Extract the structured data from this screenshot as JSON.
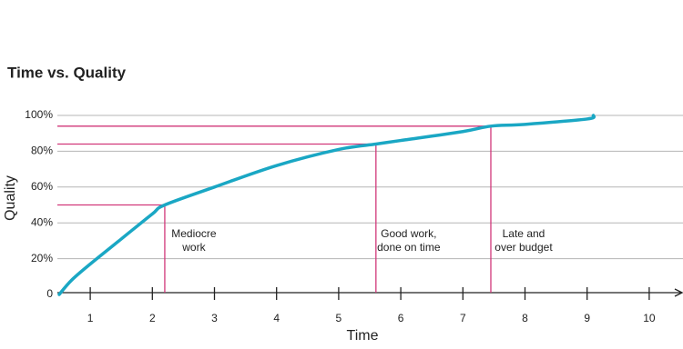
{
  "chart_data": {
    "type": "line",
    "title": "Time vs. Quality",
    "x_label": "Time",
    "y_label": "Quality",
    "xlim": [
      0.5,
      10.5
    ],
    "xticks": [
      1,
      2,
      3,
      4,
      5,
      6,
      7,
      8,
      9,
      10
    ],
    "ylim": [
      0,
      100
    ],
    "yticks": [
      0,
      {
        "value": 20,
        "label": "20%"
      },
      {
        "value": 40,
        "label": "40%"
      },
      {
        "value": 60,
        "label": "60%"
      },
      {
        "value": 80,
        "label": "80%"
      },
      {
        "value": 100,
        "label": "100%"
      }
    ],
    "grid": true,
    "series": [
      {
        "color": "#1aa7c4",
        "x": [
          0.5,
          0.7,
          1,
          1.5,
          2,
          2.2,
          3,
          4,
          5,
          5.6,
          6,
          7,
          7.45,
          8,
          9,
          9.1
        ],
        "values": [
          0,
          8,
          17,
          31,
          45,
          50,
          60,
          72,
          81,
          84,
          86,
          91,
          94,
          95,
          98,
          100
        ]
      }
    ],
    "marker_color": "#d1377a",
    "markers": [
      {
        "x": 2.2,
        "y": 50,
        "label": [
          "Mediocre",
          "work"
        ]
      },
      {
        "x": 5.6,
        "y": 84,
        "label": [
          "Good work,",
          "done on time"
        ]
      },
      {
        "x": 7.45,
        "y": 94,
        "label": [
          "Late and",
          "over budget"
        ]
      }
    ]
  }
}
